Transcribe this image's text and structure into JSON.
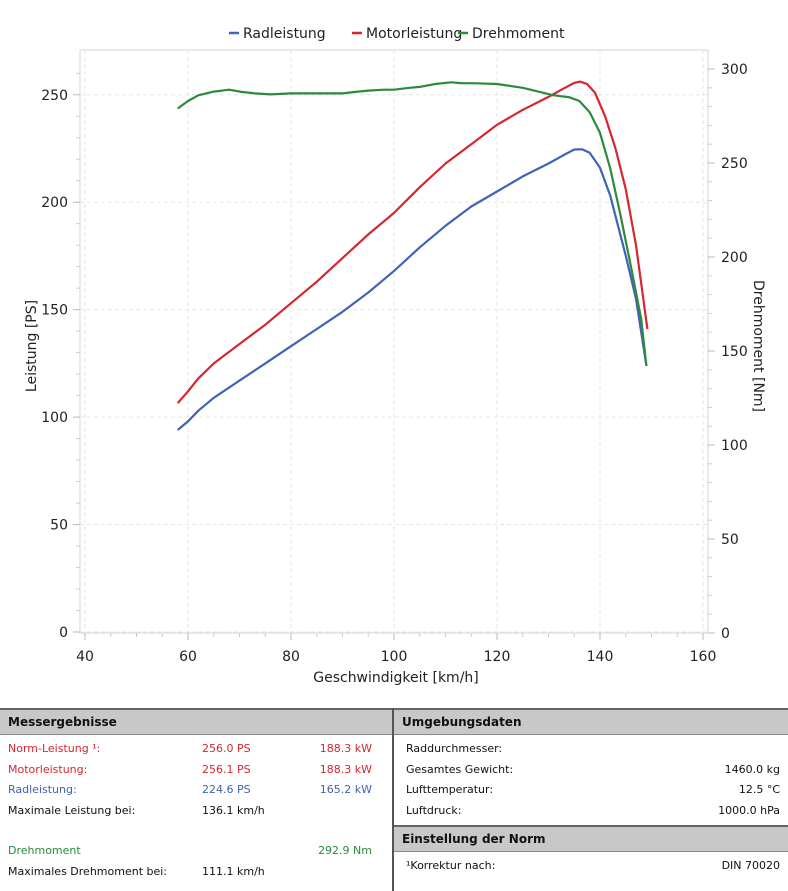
{
  "chart_data": {
    "type": "line",
    "title": "",
    "xlabel": "Geschwindigkeit [km/h]",
    "ylabel": "Leistung [PS]",
    "y2label": "Drehmoment [Nm]",
    "xlim": [
      40,
      160
    ],
    "ylim": [
      0,
      270
    ],
    "y2lim": [
      0,
      300
    ],
    "xticks": [
      "40",
      "60",
      "80",
      "100",
      "120",
      "140",
      "160"
    ],
    "yticks": [
      "0",
      "50",
      "100",
      "150",
      "200",
      "250"
    ],
    "y2ticks": [
      "0",
      "50",
      "100",
      "150",
      "200",
      "250",
      "300"
    ],
    "grid": true,
    "legend": "top-center",
    "series": [
      {
        "name": "Radleistung",
        "axis": "left",
        "color": "#3f63b5",
        "x": [
          58,
          60,
          62,
          65,
          70,
          75,
          80,
          85,
          90,
          95,
          100,
          105,
          110,
          115,
          120,
          125,
          130,
          133,
          135,
          136.5,
          138,
          140,
          142,
          145,
          147,
          149
        ],
        "y": [
          94,
          98,
          103,
          109,
          117,
          125,
          133,
          141,
          149,
          158,
          168,
          179,
          189,
          198,
          205,
          212,
          218,
          222,
          224.5,
          224.6,
          223,
          216,
          203,
          175,
          155,
          124
        ]
      },
      {
        "name": "Motorleistung",
        "axis": "left",
        "color": "#d6262e",
        "x": [
          58,
          60,
          62,
          65,
          70,
          75,
          80,
          85,
          90,
          95,
          100,
          105,
          110,
          115,
          120,
          125,
          130,
          133,
          135,
          136.1,
          137.5,
          139,
          141,
          143,
          145,
          147,
          149.2
        ],
        "y": [
          106.5,
          112,
          118,
          125,
          134,
          143,
          153,
          163,
          174,
          185,
          195,
          207,
          218,
          227,
          236,
          243,
          249,
          253,
          255.5,
          256.1,
          255,
          251,
          240,
          225,
          206,
          180,
          141
        ]
      },
      {
        "name": "Drehmoment",
        "axis": "right",
        "color": "#2b8a3e",
        "x": [
          58,
          60,
          62,
          65,
          68,
          70,
          73,
          76,
          80,
          85,
          90,
          93,
          95,
          98,
          100,
          103,
          105,
          108,
          111.1,
          113,
          116,
          120,
          125,
          128,
          131,
          134,
          136,
          138,
          140,
          142,
          144,
          146,
          148,
          149
        ],
        "y": [
          279,
          283,
          286,
          288,
          289,
          288,
          287,
          286.5,
          287,
          287,
          287,
          288,
          288.5,
          289,
          289,
          290,
          290.5,
          292,
          292.9,
          292.5,
          292.4,
          292,
          290,
          288,
          286,
          285,
          283,
          277,
          266,
          247,
          222,
          195,
          167,
          142
        ]
      }
    ]
  },
  "results": {
    "title": "Messergebnisse",
    "rows": [
      {
        "label": "Norm-Leistung ¹:",
        "v1": "256.0 PS",
        "v2": "188.3 kW",
        "color": "red"
      },
      {
        "label": "Motorleistung:",
        "v1": "256.1 PS",
        "v2": "188.3 kW",
        "color": "red"
      },
      {
        "label": "Radleistung:",
        "v1": "224.6 PS",
        "v2": "165.2 kW",
        "color": "blue"
      },
      {
        "label": "Maximale Leistung bei:",
        "v1": "136.1 km/h",
        "v2": "",
        "color": ""
      }
    ],
    "torque_label": "Drehmoment",
    "torque_value": "292.9 Nm",
    "torque_speed_label": "Maximales Drehmoment bei:",
    "torque_speed_value": "111.1 km/h"
  },
  "environment": {
    "title": "Umgebungsdaten",
    "rows": [
      {
        "label": "Raddurchmesser:",
        "value": ""
      },
      {
        "label": "Gesamtes Gewicht:",
        "value": "1460.0 kg"
      },
      {
        "label": "Lufttemperatur:",
        "value": "12.5 °C"
      },
      {
        "label": "Luftdruck:",
        "value": "1000.0 hPa"
      }
    ]
  },
  "norm": {
    "title": "Einstellung der Norm",
    "label": "¹Korrektur nach:",
    "value": "DIN 70020"
  }
}
